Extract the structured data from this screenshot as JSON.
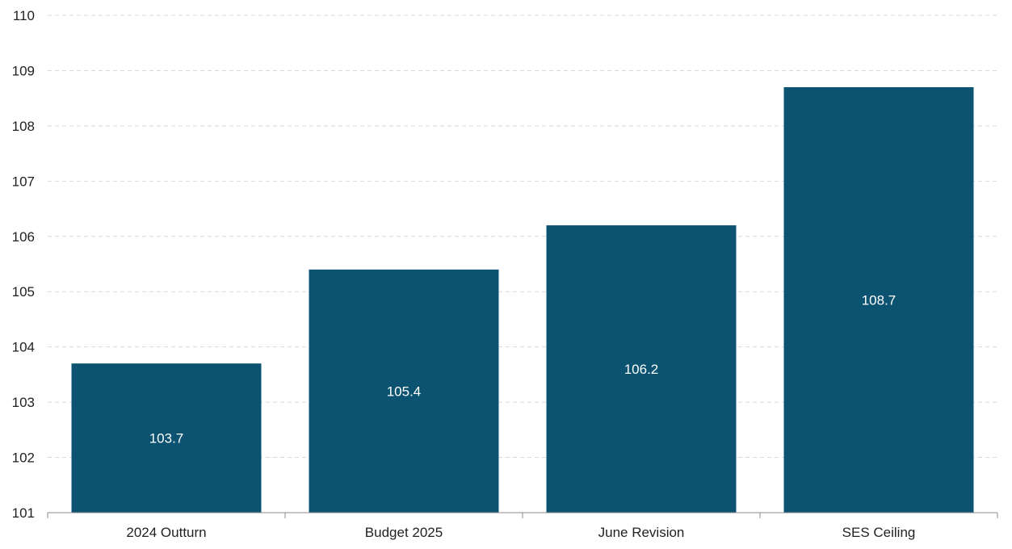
{
  "chart_data": {
    "type": "bar",
    "categories": [
      "2024 Outturn",
      "Budget 2025",
      "June Revision",
      "SES Ceiling"
    ],
    "values": [
      103.7,
      105.4,
      106.2,
      108.7
    ],
    "data_labels": [
      "103.7",
      "105.4",
      "106.2",
      "108.7"
    ],
    "title": "",
    "xlabel": "",
    "ylabel": "",
    "ylim": [
      101,
      110
    ],
    "yticks": [
      101,
      102,
      103,
      104,
      105,
      106,
      107,
      108,
      109,
      110
    ],
    "grid": true,
    "legend": "none",
    "bar_color": "#0b5370"
  }
}
